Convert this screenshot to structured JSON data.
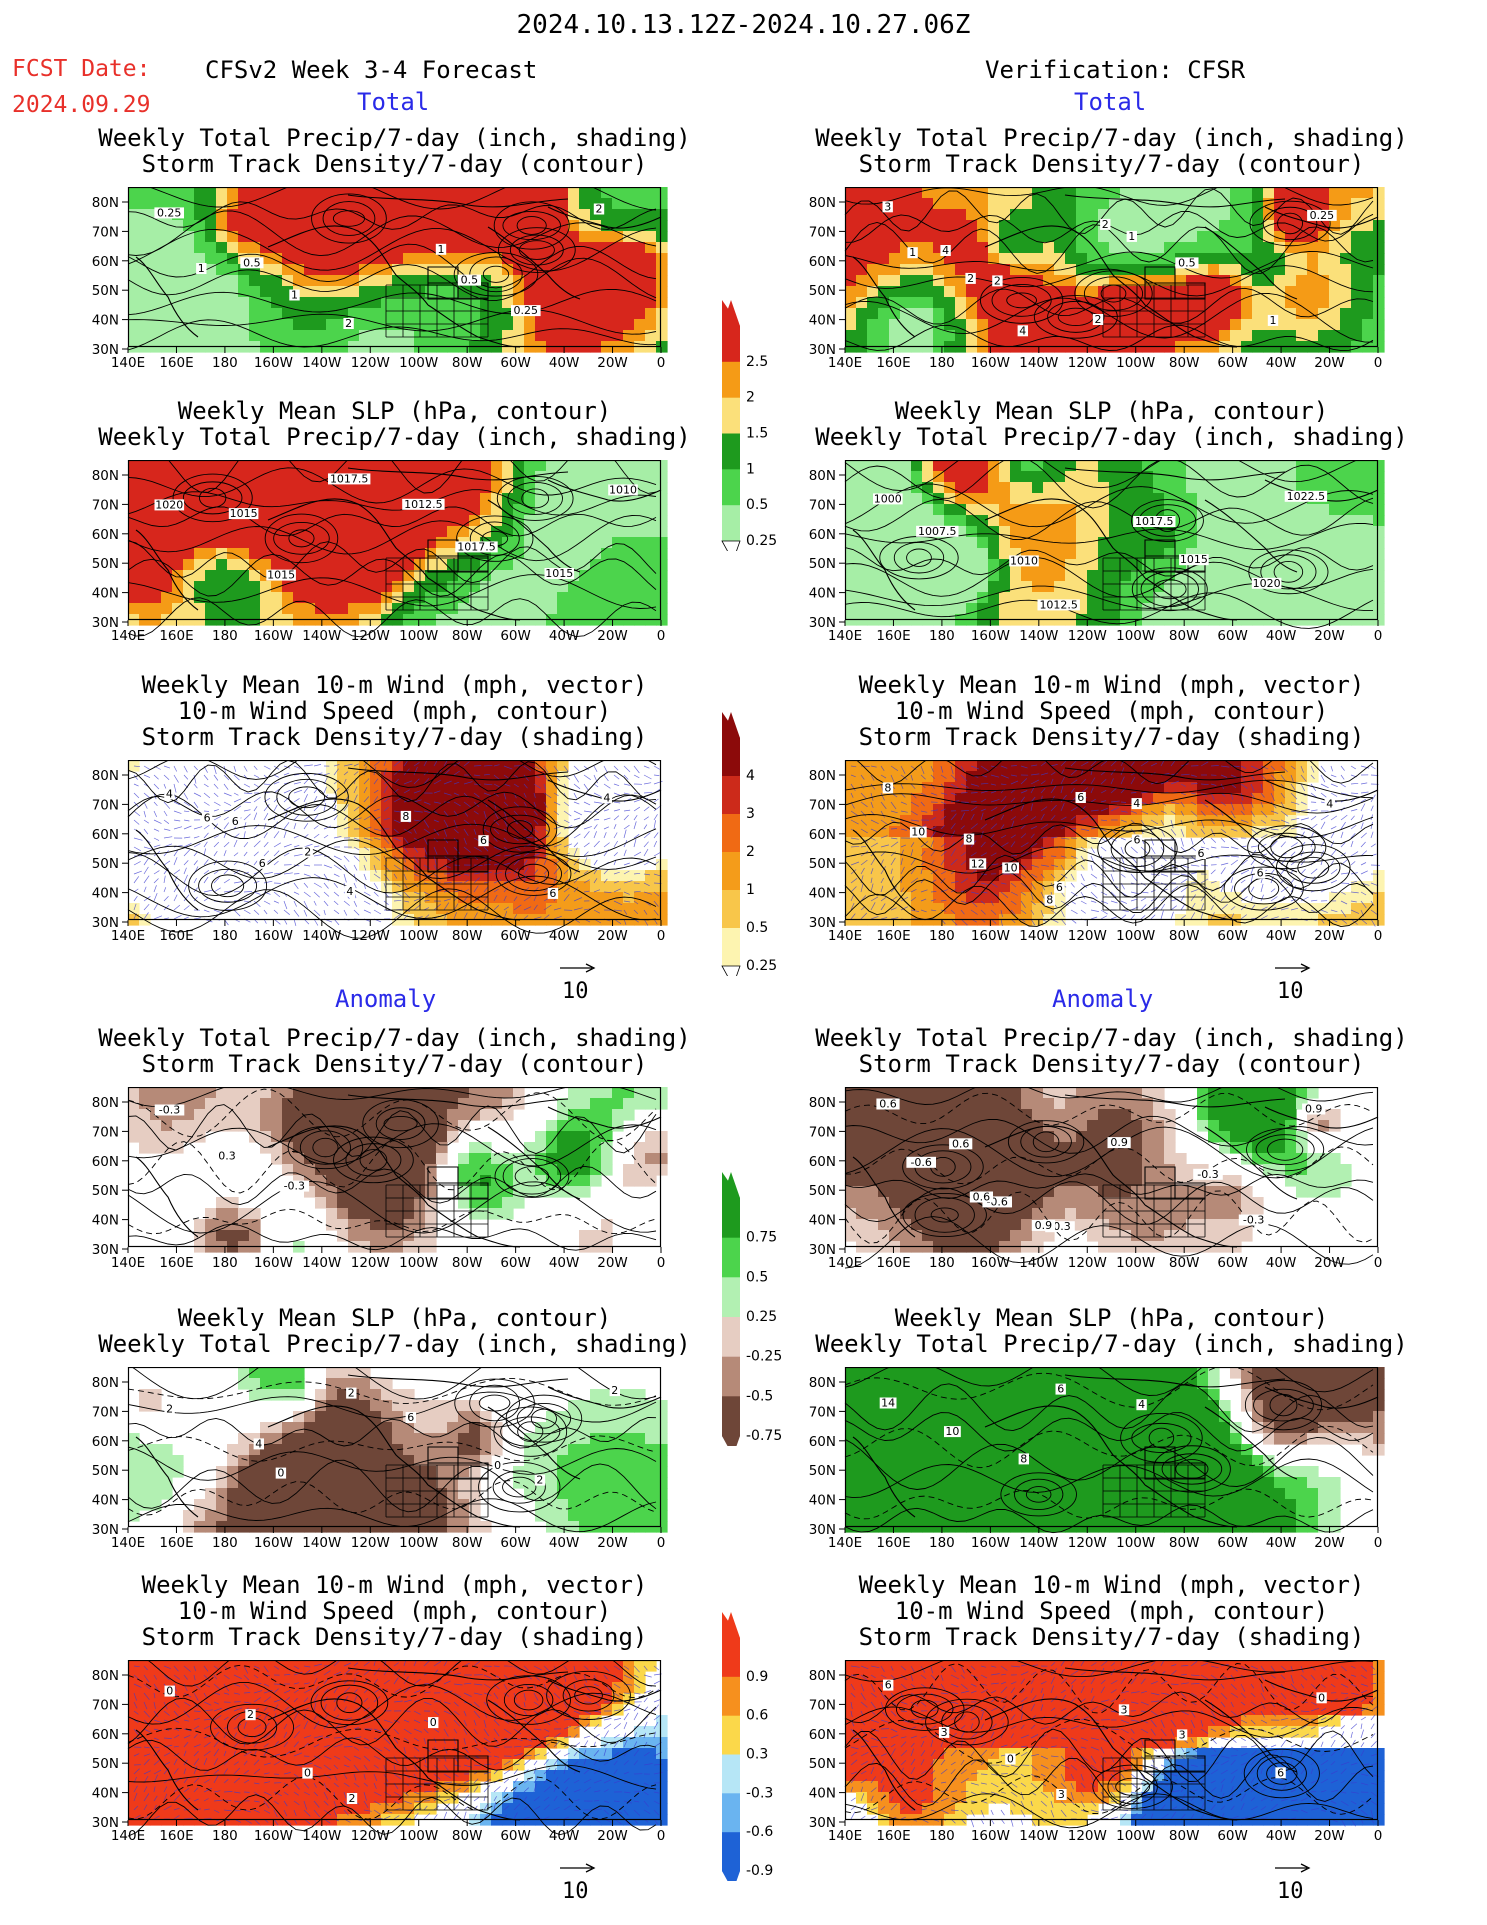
{
  "header": {
    "date_range": "2024.10.13.12Z-2024.10.27.06Z",
    "fcst_label": "FCST Date:",
    "fcst_date": "2024.09.29",
    "model_title": "CFSv2 Week 3-4 Forecast",
    "verification_title": "Verification: CFSR"
  },
  "sections": {
    "total": "Total",
    "anomaly": "Anomaly"
  },
  "panel_titles": {
    "precip_storm": [
      "Weekly Total Precip/7-day (inch, shading)",
      "Storm Track Density/7-day (contour)"
    ],
    "slp_precip": [
      "Weekly Mean SLP (hPa, contour)",
      "Weekly Total Precip/7-day (inch, shading)"
    ],
    "wind_storm": [
      "Weekly Mean 10-m Wind (mph, vector)",
      "10-m Wind Speed (mph, contour)",
      "Storm Track Density/7-day (shading)"
    ]
  },
  "vector_ref": "10",
  "map": {
    "lon_labels": [
      "140E",
      "160E",
      "180",
      "160W",
      "140W",
      "120W",
      "100W",
      "80W",
      "60W",
      "40W",
      "20W",
      "0"
    ],
    "lat_labels": [
      "80N",
      "70N",
      "60N",
      "50N",
      "40N",
      "30N"
    ]
  },
  "colorbars": [
    {
      "id": "precip_total",
      "labels": [
        "2.5",
        "2",
        "1.5",
        "1",
        "0.5",
        "0.25"
      ],
      "colors": [
        "#d7261c",
        "#f59b16",
        "#fbe07a",
        "#1e9a1e",
        "#4cd44c",
        "#a6eea6"
      ]
    },
    {
      "id": "storm_total",
      "labels": [
        "4",
        "3",
        "2",
        "1",
        "0.5",
        "0.25"
      ],
      "colors": [
        "#8c0a0a",
        "#cc2a1a",
        "#f06a14",
        "#f49c1a",
        "#f8c64a",
        "#fdf4b0"
      ]
    },
    {
      "id": "precip_anom",
      "labels": [
        "0.75",
        "0.5",
        "0.25",
        "-0.25",
        "-0.5",
        "-0.75"
      ],
      "colors": [
        "#1e9a1e",
        "#4cd44c",
        "#b2f0b2",
        "#e6cdc2",
        "#b68a78",
        "#6e4638"
      ]
    },
    {
      "id": "storm_anom",
      "labels": [
        "0.9",
        "0.6",
        "0.3",
        "-0.3",
        "-0.6",
        "-0.9"
      ],
      "colors": [
        "#ef3a1a",
        "#f6901e",
        "#fbd84a",
        "#b6e6f6",
        "#6ab4f0",
        "#1e62d6"
      ]
    }
  ],
  "contour_labels": {
    "p1L": [
      "0.25",
      "0.5",
      "1",
      "2",
      "1",
      "0.5",
      "0.25",
      "2",
      "1"
    ],
    "p1R": [
      "3",
      "4",
      "2",
      "2",
      "1",
      "0.5",
      "1",
      "0.25",
      "1",
      "2",
      "4",
      "2"
    ],
    "p2L": [
      "1020",
      "1015",
      "1015",
      "1017.5",
      "1012.5",
      "1017.5",
      "1015",
      "1010"
    ],
    "p2R": [
      "1000",
      "1007.5",
      "1010",
      "1012.5",
      "1017.5",
      "1015",
      "1020",
      "1022.5"
    ],
    "p3L": [
      "4",
      "6",
      "2",
      "4",
      "8",
      "6",
      "6",
      "4",
      "6",
      "6"
    ],
    "p3R": [
      "8",
      "8",
      "10",
      "6",
      "4",
      "6",
      "6",
      "4",
      "10",
      "12",
      "8",
      "6",
      "6"
    ],
    "p4L": [
      "-0.3",
      "0.3",
      "-0.3"
    ],
    "p4R": [
      "0.6",
      "0.6",
      "-0.6",
      "-0.3",
      "0.9",
      "-0.3",
      "-0.3",
      "0.9",
      "-0.6",
      "0.6",
      "0.9"
    ],
    "p5L": [
      "2",
      "4",
      "0",
      "2",
      "6",
      "0",
      "2",
      "2"
    ],
    "p5R": [
      "14",
      "10",
      "8",
      "6",
      "4"
    ],
    "p6L": [
      "0",
      "2",
      "0",
      "2",
      "0"
    ],
    "p6R": [
      "6",
      "3",
      "0",
      "3",
      "3",
      "3",
      "6",
      "0"
    ]
  }
}
